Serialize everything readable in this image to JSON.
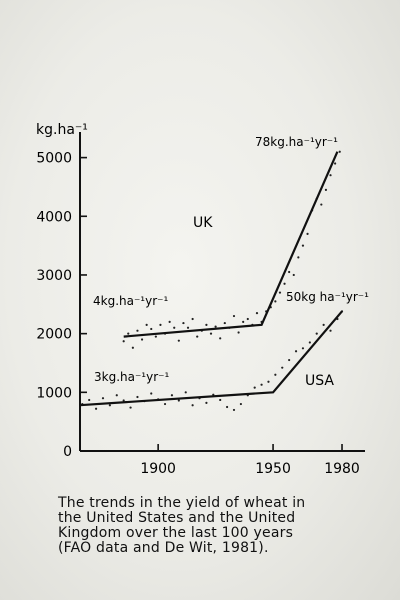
{
  "chart_data": {
    "type": "line",
    "title": "",
    "ylabel": "kg.ha⁻¹",
    "xlabel": "",
    "xlim": [
      1866,
      1990
    ],
    "ylim": [
      0,
      5300
    ],
    "x_ticks": [
      1900,
      1950,
      1980
    ],
    "x_tick_labels": [
      "1900",
      "1950",
      "1980"
    ],
    "y_ticks": [
      0,
      1000,
      2000,
      3000,
      4000,
      5000
    ],
    "y_tick_labels": [
      "0",
      "1000",
      "2000",
      "3000",
      "4000",
      "5000"
    ],
    "grid": false,
    "series": [
      {
        "name": "UK",
        "trend": [
          [
            1885,
            1950
          ],
          [
            1945,
            2150
          ],
          [
            1978,
            5100
          ]
        ],
        "scatter": [
          [
            1885,
            1870
          ],
          [
            1887,
            2000
          ],
          [
            1889,
            1760
          ],
          [
            1891,
            2050
          ],
          [
            1893,
            1900
          ],
          [
            1895,
            2150
          ],
          [
            1897,
            2080
          ],
          [
            1899,
            1950
          ],
          [
            1901,
            2150
          ],
          [
            1903,
            2000
          ],
          [
            1905,
            2200
          ],
          [
            1907,
            2100
          ],
          [
            1909,
            1880
          ],
          [
            1911,
            2180
          ],
          [
            1913,
            2100
          ],
          [
            1915,
            2250
          ],
          [
            1917,
            1950
          ],
          [
            1919,
            2050
          ],
          [
            1921,
            2150
          ],
          [
            1923,
            2000
          ],
          [
            1925,
            2120
          ],
          [
            1927,
            1920
          ],
          [
            1929,
            2180
          ],
          [
            1931,
            2100
          ],
          [
            1933,
            2300
          ],
          [
            1935,
            2020
          ],
          [
            1937,
            2200
          ],
          [
            1939,
            2250
          ],
          [
            1941,
            2150
          ],
          [
            1943,
            2350
          ],
          [
            1945,
            2200
          ],
          [
            1947,
            2380
          ],
          [
            1949,
            2450
          ],
          [
            1951,
            2550
          ],
          [
            1953,
            2700
          ],
          [
            1955,
            2850
          ],
          [
            1957,
            3050
          ],
          [
            1959,
            3000
          ],
          [
            1961,
            3300
          ],
          [
            1963,
            3500
          ],
          [
            1965,
            3700
          ],
          [
            1967,
            4100
          ],
          [
            1969,
            4300
          ],
          [
            1971,
            4200
          ],
          [
            1973,
            4450
          ],
          [
            1975,
            4700
          ],
          [
            1977,
            4900
          ],
          [
            1979,
            5100
          ]
        ]
      },
      {
        "name": "USA",
        "trend": [
          [
            1866,
            780
          ],
          [
            1950,
            1000
          ],
          [
            1980,
            2380
          ]
        ],
        "scatter": [
          [
            1867,
            800
          ],
          [
            1870,
            870
          ],
          [
            1873,
            720
          ],
          [
            1876,
            900
          ],
          [
            1879,
            780
          ],
          [
            1882,
            950
          ],
          [
            1885,
            860
          ],
          [
            1888,
            740
          ],
          [
            1891,
            920
          ],
          [
            1894,
            850
          ],
          [
            1897,
            980
          ],
          [
            1900,
            880
          ],
          [
            1903,
            800
          ],
          [
            1906,
            950
          ],
          [
            1909,
            860
          ],
          [
            1912,
            1000
          ],
          [
            1915,
            780
          ],
          [
            1918,
            900
          ],
          [
            1921,
            820
          ],
          [
            1924,
            960
          ],
          [
            1927,
            870
          ],
          [
            1930,
            750
          ],
          [
            1933,
            700
          ],
          [
            1936,
            800
          ],
          [
            1939,
            950
          ],
          [
            1942,
            1080
          ],
          [
            1945,
            1130
          ],
          [
            1948,
            1180
          ],
          [
            1951,
            1300
          ],
          [
            1954,
            1420
          ],
          [
            1957,
            1550
          ],
          [
            1960,
            1700
          ],
          [
            1963,
            1750
          ],
          [
            1966,
            1850
          ],
          [
            1969,
            2000
          ],
          [
            1972,
            2150
          ],
          [
            1975,
            2050
          ],
          [
            1978,
            2250
          ],
          [
            1980,
            2380
          ]
        ]
      }
    ],
    "annotations": {
      "uk_label": "UK",
      "usa_label": "USA",
      "uk_old_rate": "4kg.ha⁻¹yr⁻¹",
      "uk_new_rate": "78kg.ha⁻¹yr⁻¹",
      "usa_old_rate": "3kg.ha⁻¹yr⁻¹",
      "usa_new_rate": "50kg ha⁻¹yr⁻¹"
    }
  },
  "caption": "The trends in the yield of wheat in\nthe United States and the United\nKingdom over the last 100 years\n(FAO data and De Wit, 1981)."
}
